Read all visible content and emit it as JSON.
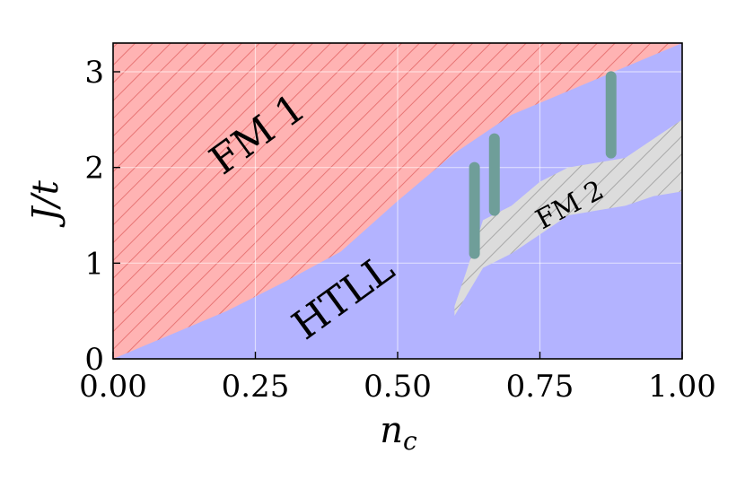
{
  "chart_data": {
    "type": "area",
    "xlabel": "n_c",
    "ylabel": "J/t",
    "xlim": [
      0.0,
      1.0
    ],
    "ylim": [
      0.0,
      3.3
    ],
    "xticks": [
      "0.00",
      "0.25",
      "0.50",
      "0.75",
      "1.00"
    ],
    "yticks": [
      "0",
      "1",
      "2",
      "3"
    ],
    "grid": true,
    "colors": {
      "fm1_fill": "#ffb3b3",
      "fm1_hatch": "#e87575",
      "htll_fill": "#b3b3ff",
      "fm2_fill": "#dcdcdc",
      "fm2_hatch": "#a8a8a8",
      "bar": "#6f9e99"
    },
    "regions": [
      {
        "label": "FM 1",
        "boundary_lower": {
          "x": [
            0.0,
            0.1,
            0.2,
            0.3,
            0.4,
            0.5,
            0.6,
            0.7,
            0.8,
            0.9,
            1.0
          ],
          "y": [
            0.0,
            0.25,
            0.5,
            0.8,
            1.12,
            1.65,
            2.15,
            2.55,
            2.8,
            3.05,
            3.3
          ]
        }
      },
      {
        "label": "HTLL"
      },
      {
        "label": "FM 2",
        "upper": {
          "x": [
            0.6,
            0.62,
            0.65,
            0.7,
            0.75,
            0.8,
            0.85,
            0.9,
            0.95,
            1.0
          ],
          "y": [
            0.55,
            0.9,
            1.45,
            1.6,
            1.85,
            2.0,
            2.05,
            2.1,
            2.3,
            2.5
          ]
        },
        "lower": {
          "x": [
            0.6,
            0.65,
            0.7,
            0.75,
            0.8,
            0.85,
            0.9,
            0.95,
            1.0
          ],
          "y": [
            0.45,
            0.95,
            1.1,
            1.3,
            1.5,
            1.55,
            1.6,
            1.7,
            1.75
          ]
        }
      }
    ],
    "bars": [
      {
        "x": 0.635,
        "y0": 1.1,
        "y1": 2.0
      },
      {
        "x": 0.67,
        "y0": 1.55,
        "y1": 2.3
      },
      {
        "x": 0.875,
        "y0": 2.15,
        "y1": 2.95
      }
    ]
  }
}
